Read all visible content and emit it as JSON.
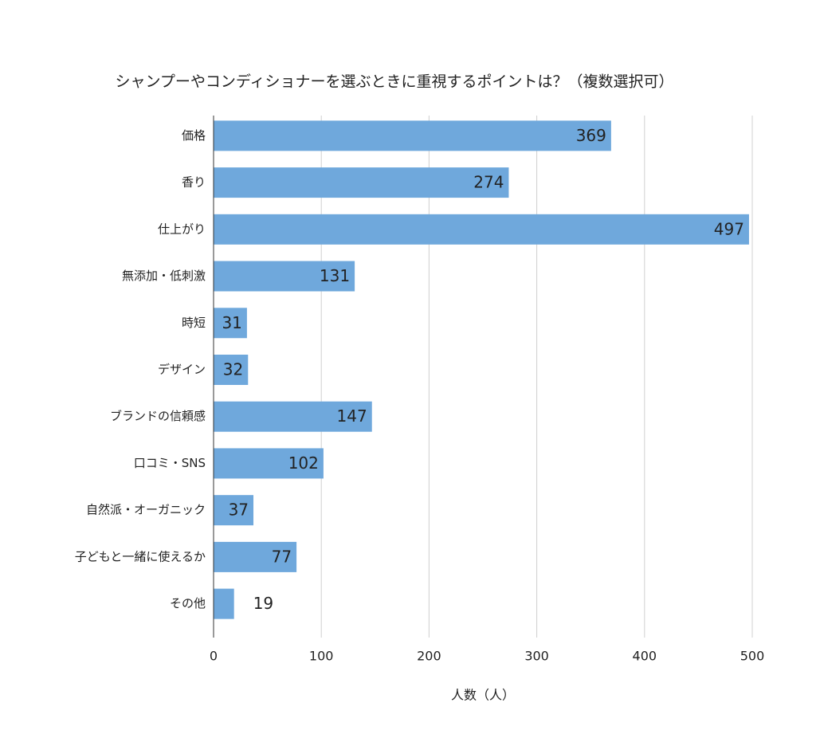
{
  "chart_data": {
    "type": "hbar",
    "title": "シャンプーやコンディショナーを選ぶときに重視するポイントは？（複数選択可）",
    "x_label": "人数（人）",
    "categories": [
      "価格",
      "香り",
      "仕上がり",
      "無添加・低刺激",
      "時短",
      "デザイン",
      "ブランドの信頼感",
      "口コミ・SNS",
      "自然派・オーガニック",
      "子どもと一緒に使えるか",
      "その他"
    ],
    "values": [
      369,
      274,
      497,
      131,
      31,
      32,
      147,
      102,
      37,
      77,
      19
    ],
    "color": "#6fa8dc",
    "xlim": [
      0,
      500
    ],
    "xticks": [
      0,
      100,
      200,
      300,
      400,
      500
    ],
    "grid": true
  }
}
